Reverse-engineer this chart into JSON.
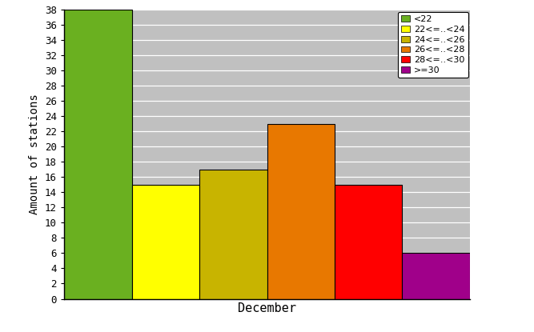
{
  "categories": [
    "<22",
    "22<=..<24",
    "24<=..<26",
    "26<=..<28",
    "28<=..<30",
    ">=30"
  ],
  "values": [
    38,
    15,
    17,
    23,
    15,
    6
  ],
  "colors": [
    "#6ab020",
    "#ffff00",
    "#c8b400",
    "#e87800",
    "#ff0000",
    "#a0008a"
  ],
  "xlabel": "December",
  "ylabel": "Amount of stations",
  "ylim": [
    0,
    38
  ],
  "yticks": [
    0,
    2,
    4,
    6,
    8,
    10,
    12,
    14,
    16,
    18,
    20,
    22,
    24,
    26,
    28,
    30,
    32,
    34,
    36,
    38
  ],
  "plot_bg_color": "#c0c0c0",
  "grid_color": "#a0a0a0",
  "legend_labels": [
    "<22",
    "22<=..<24",
    "24<=..<26",
    "26<=..<28",
    "28<=..<30",
    ">=30"
  ]
}
